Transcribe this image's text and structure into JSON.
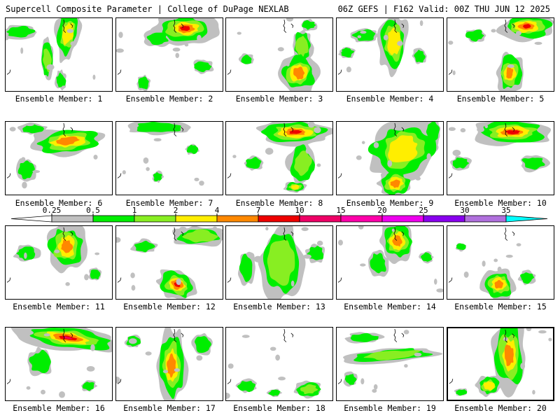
{
  "header": {
    "title": "Supercell Composite Parameter | College of DuPage NEXLAB",
    "run_info": "06Z GEFS | F162 Valid: 00Z THU JUN 12 2025"
  },
  "colorbar": {
    "ticks": [
      "0.25",
      "0.5",
      "1",
      "2",
      "4",
      "7",
      "10",
      "15",
      "20",
      "25",
      "30",
      "35"
    ],
    "colors": [
      "#c0c0c0",
      "#00ee00",
      "#88ee22",
      "#ffee00",
      "#ff8800",
      "#ee0000",
      "#ee0066",
      "#ff00aa",
      "#ee00ee",
      "#8800ee",
      "#b070dd",
      "#00ffff"
    ]
  },
  "members": [
    {
      "label": "Ensemble Member: 1"
    },
    {
      "label": "Ensemble Member: 2"
    },
    {
      "label": "Ensemble Member: 3"
    },
    {
      "label": "Ensemble Member: 4"
    },
    {
      "label": "Ensemble Member: 5"
    },
    {
      "label": "Ensemble Member: 6"
    },
    {
      "label": "Ensemble Member: 7"
    },
    {
      "label": "Ensemble Member: 8"
    },
    {
      "label": "Ensemble Member: 9"
    },
    {
      "label": "Ensemble Member: 10"
    },
    {
      "label": "Ensemble Member: 11"
    },
    {
      "label": "Ensemble Member: 12"
    },
    {
      "label": "Ensemble Member: 13"
    },
    {
      "label": "Ensemble Member: 14"
    },
    {
      "label": "Ensemble Member: 15"
    },
    {
      "label": "Ensemble Member: 16"
    },
    {
      "label": "Ensemble Member: 17"
    },
    {
      "label": "Ensemble Member: 18"
    },
    {
      "label": "Ensemble Member: 19"
    },
    {
      "label": "Ensemble Member: 20"
    }
  ]
}
